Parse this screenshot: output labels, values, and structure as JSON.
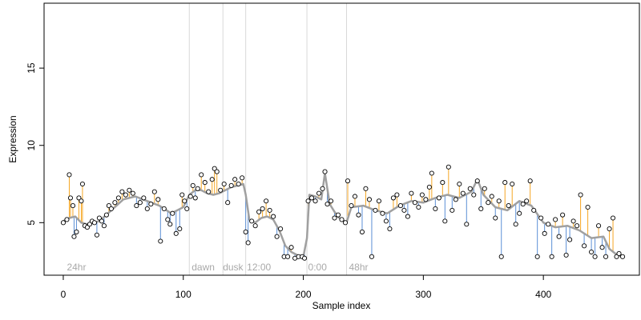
{
  "chart_data": {
    "type": "line",
    "title": "",
    "xlabel": "Sample index",
    "ylabel": "Expression",
    "xlim": [
      -16,
      480
    ],
    "ylim": [
      1.6,
      19.2
    ],
    "x_ticks": [
      0,
      100,
      200,
      300,
      400
    ],
    "y_ticks": [
      5,
      10,
      15
    ],
    "grid": false,
    "colors": {
      "fitted_line": "#a0a0a0",
      "residual_positive": "#f5a623",
      "residual_negative": "#5b8fd6",
      "observed_point": "#000000",
      "phase_line": "#d9d9d9",
      "phase_text": "#a9a9a9"
    },
    "phase_boundaries": [
      105,
      133,
      152,
      203,
      236
    ],
    "phase_labels": [
      {
        "x": 3,
        "label": "24hr"
      },
      {
        "x": 107,
        "label": "dawn"
      },
      {
        "x": 133,
        "label": "dusk"
      },
      {
        "x": 153,
        "label": "12:00"
      },
      {
        "x": 204,
        "label": "0:00"
      },
      {
        "x": 238,
        "label": "48hr"
      }
    ],
    "fitted_knots": [
      [
        0,
        5.1
      ],
      [
        5,
        5.3
      ],
      [
        10,
        5.4
      ],
      [
        15,
        5.0
      ],
      [
        20,
        4.9
      ],
      [
        30,
        5.1
      ],
      [
        40,
        5.8
      ],
      [
        50,
        6.5
      ],
      [
        60,
        6.7
      ],
      [
        70,
        6.4
      ],
      [
        80,
        6.1
      ],
      [
        90,
        5.6
      ],
      [
        100,
        6.0
      ],
      [
        105,
        6.8
      ],
      [
        110,
        7.1
      ],
      [
        115,
        7.1
      ],
      [
        120,
        6.9
      ],
      [
        125,
        6.8
      ],
      [
        130,
        6.9
      ],
      [
        135,
        7.1
      ],
      [
        140,
        7.3
      ],
      [
        145,
        7.4
      ],
      [
        150,
        7.5
      ],
      [
        152,
        6.8
      ],
      [
        155,
        5.2
      ],
      [
        160,
        5.0
      ],
      [
        165,
        5.3
      ],
      [
        170,
        5.4
      ],
      [
        175,
        5.2
      ],
      [
        180,
        4.5
      ],
      [
        185,
        3.5
      ],
      [
        190,
        3.1
      ],
      [
        195,
        2.9
      ],
      [
        200,
        2.8
      ],
      [
        203,
        4.0
      ],
      [
        205,
        6.8
      ],
      [
        210,
        6.7
      ],
      [
        215,
        6.5
      ],
      [
        218,
        8.2
      ],
      [
        222,
        6.2
      ],
      [
        226,
        5.7
      ],
      [
        230,
        5.3
      ],
      [
        236,
        5.0
      ],
      [
        240,
        6.0
      ],
      [
        250,
        6.1
      ],
      [
        260,
        5.8
      ],
      [
        270,
        5.6
      ],
      [
        280,
        6.1
      ],
      [
        290,
        6.4
      ],
      [
        300,
        6.3
      ],
      [
        310,
        6.6
      ],
      [
        320,
        6.8
      ],
      [
        330,
        6.6
      ],
      [
        340,
        7.0
      ],
      [
        345,
        7.8
      ],
      [
        350,
        6.8
      ],
      [
        360,
        6.0
      ],
      [
        370,
        5.8
      ],
      [
        380,
        6.4
      ],
      [
        390,
        6.1
      ],
      [
        400,
        5.0
      ],
      [
        410,
        4.7
      ],
      [
        420,
        4.8
      ],
      [
        430,
        4.5
      ],
      [
        440,
        4.0
      ],
      [
        450,
        4.1
      ],
      [
        455,
        3.3
      ],
      [
        460,
        3.0
      ],
      [
        465,
        2.8
      ]
    ],
    "observed_points": [
      [
        0,
        5.0
      ],
      [
        3,
        5.2
      ],
      [
        5,
        8.1
      ],
      [
        6,
        6.6
      ],
      [
        8,
        6.1
      ],
      [
        9,
        4.1
      ],
      [
        11,
        4.4
      ],
      [
        13,
        6.6
      ],
      [
        15,
        6.4
      ],
      [
        16,
        7.5
      ],
      [
        18,
        4.8
      ],
      [
        20,
        4.7
      ],
      [
        22,
        4.9
      ],
      [
        24,
        5.1
      ],
      [
        26,
        5.0
      ],
      [
        28,
        4.2
      ],
      [
        30,
        5.3
      ],
      [
        32,
        5.1
      ],
      [
        34,
        4.8
      ],
      [
        36,
        5.5
      ],
      [
        38,
        6.1
      ],
      [
        40,
        5.9
      ],
      [
        43,
        6.3
      ],
      [
        46,
        6.6
      ],
      [
        49,
        7.0
      ],
      [
        52,
        6.8
      ],
      [
        55,
        7.1
      ],
      [
        58,
        6.9
      ],
      [
        61,
        6.1
      ],
      [
        64,
        6.3
      ],
      [
        67,
        6.6
      ],
      [
        70,
        5.9
      ],
      [
        73,
        6.2
      ],
      [
        76,
        7.0
      ],
      [
        79,
        6.5
      ],
      [
        81,
        3.8
      ],
      [
        84,
        5.9
      ],
      [
        87,
        5.2
      ],
      [
        89,
        4.9
      ],
      [
        91,
        5.6
      ],
      [
        94,
        4.3
      ],
      [
        97,
        4.6
      ],
      [
        99,
        6.8
      ],
      [
        101,
        6.4
      ],
      [
        103,
        5.9
      ],
      [
        106,
        6.7
      ],
      [
        108,
        7.4
      ],
      [
        110,
        6.6
      ],
      [
        112,
        7.2
      ],
      [
        115,
        8.1
      ],
      [
        118,
        7.6
      ],
      [
        121,
        7.0
      ],
      [
        124,
        7.8
      ],
      [
        126,
        8.5
      ],
      [
        128,
        8.3
      ],
      [
        131,
        7.1
      ],
      [
        134,
        7.5
      ],
      [
        137,
        6.3
      ],
      [
        140,
        7.4
      ],
      [
        143,
        7.8
      ],
      [
        146,
        7.5
      ],
      [
        149,
        7.9
      ],
      [
        152,
        4.4
      ],
      [
        154,
        3.7
      ],
      [
        157,
        5.1
      ],
      [
        160,
        4.8
      ],
      [
        163,
        5.7
      ],
      [
        166,
        5.9
      ],
      [
        169,
        6.4
      ],
      [
        172,
        5.8
      ],
      [
        175,
        5.4
      ],
      [
        178,
        4.1
      ],
      [
        181,
        4.6
      ],
      [
        184,
        2.8
      ],
      [
        187,
        2.8
      ],
      [
        190,
        3.4
      ],
      [
        193,
        2.7
      ],
      [
        196,
        2.8
      ],
      [
        199,
        2.8
      ],
      [
        201,
        2.7
      ],
      [
        204,
        6.4
      ],
      [
        207,
        6.6
      ],
      [
        210,
        6.4
      ],
      [
        213,
        6.9
      ],
      [
        216,
        7.2
      ],
      [
        218,
        8.3
      ],
      [
        220,
        6.2
      ],
      [
        223,
        6.4
      ],
      [
        226,
        5.3
      ],
      [
        229,
        5.5
      ],
      [
        232,
        5.2
      ],
      [
        235,
        5.0
      ],
      [
        237,
        7.7
      ],
      [
        240,
        6.1
      ],
      [
        243,
        6.7
      ],
      [
        246,
        5.5
      ],
      [
        249,
        4.4
      ],
      [
        252,
        7.2
      ],
      [
        255,
        6.5
      ],
      [
        257,
        2.8
      ],
      [
        260,
        5.8
      ],
      [
        263,
        6.4
      ],
      [
        266,
        5.6
      ],
      [
        269,
        5.1
      ],
      [
        272,
        4.6
      ],
      [
        275,
        6.6
      ],
      [
        278,
        6.8
      ],
      [
        281,
        6.1
      ],
      [
        284,
        5.8
      ],
      [
        287,
        5.4
      ],
      [
        290,
        6.9
      ],
      [
        293,
        6.3
      ],
      [
        296,
        6.0
      ],
      [
        299,
        6.8
      ],
      [
        302,
        6.5
      ],
      [
        305,
        7.3
      ],
      [
        307,
        8.2
      ],
      [
        310,
        5.9
      ],
      [
        313,
        6.6
      ],
      [
        316,
        7.6
      ],
      [
        318,
        5.1
      ],
      [
        321,
        8.6
      ],
      [
        324,
        5.8
      ],
      [
        327,
        6.5
      ],
      [
        330,
        7.5
      ],
      [
        333,
        6.9
      ],
      [
        336,
        4.9
      ],
      [
        339,
        7.2
      ],
      [
        342,
        6.8
      ],
      [
        345,
        7.7
      ],
      [
        348,
        5.9
      ],
      [
        351,
        7.2
      ],
      [
        354,
        6.3
      ],
      [
        357,
        6.7
      ],
      [
        360,
        5.3
      ],
      [
        363,
        6.4
      ],
      [
        365,
        2.8
      ],
      [
        368,
        7.6
      ],
      [
        371,
        6.1
      ],
      [
        374,
        7.5
      ],
      [
        377,
        4.9
      ],
      [
        380,
        5.6
      ],
      [
        383,
        6.2
      ],
      [
        386,
        6.4
      ],
      [
        389,
        7.7
      ],
      [
        392,
        5.8
      ],
      [
        395,
        2.8
      ],
      [
        398,
        5.3
      ],
      [
        401,
        4.3
      ],
      [
        404,
        4.9
      ],
      [
        407,
        2.8
      ],
      [
        410,
        5.2
      ],
      [
        413,
        4.1
      ],
      [
        416,
        5.5
      ],
      [
        419,
        2.9
      ],
      [
        422,
        3.9
      ],
      [
        425,
        5.1
      ],
      [
        428,
        4.8
      ],
      [
        431,
        6.8
      ],
      [
        434,
        3.5
      ],
      [
        437,
        6.0
      ],
      [
        440,
        3.1
      ],
      [
        443,
        2.8
      ],
      [
        446,
        4.8
      ],
      [
        449,
        3.4
      ],
      [
        452,
        2.8
      ],
      [
        455,
        4.6
      ],
      [
        458,
        5.3
      ],
      [
        461,
        2.8
      ],
      [
        463,
        3.0
      ],
      [
        466,
        2.8
      ]
    ]
  }
}
